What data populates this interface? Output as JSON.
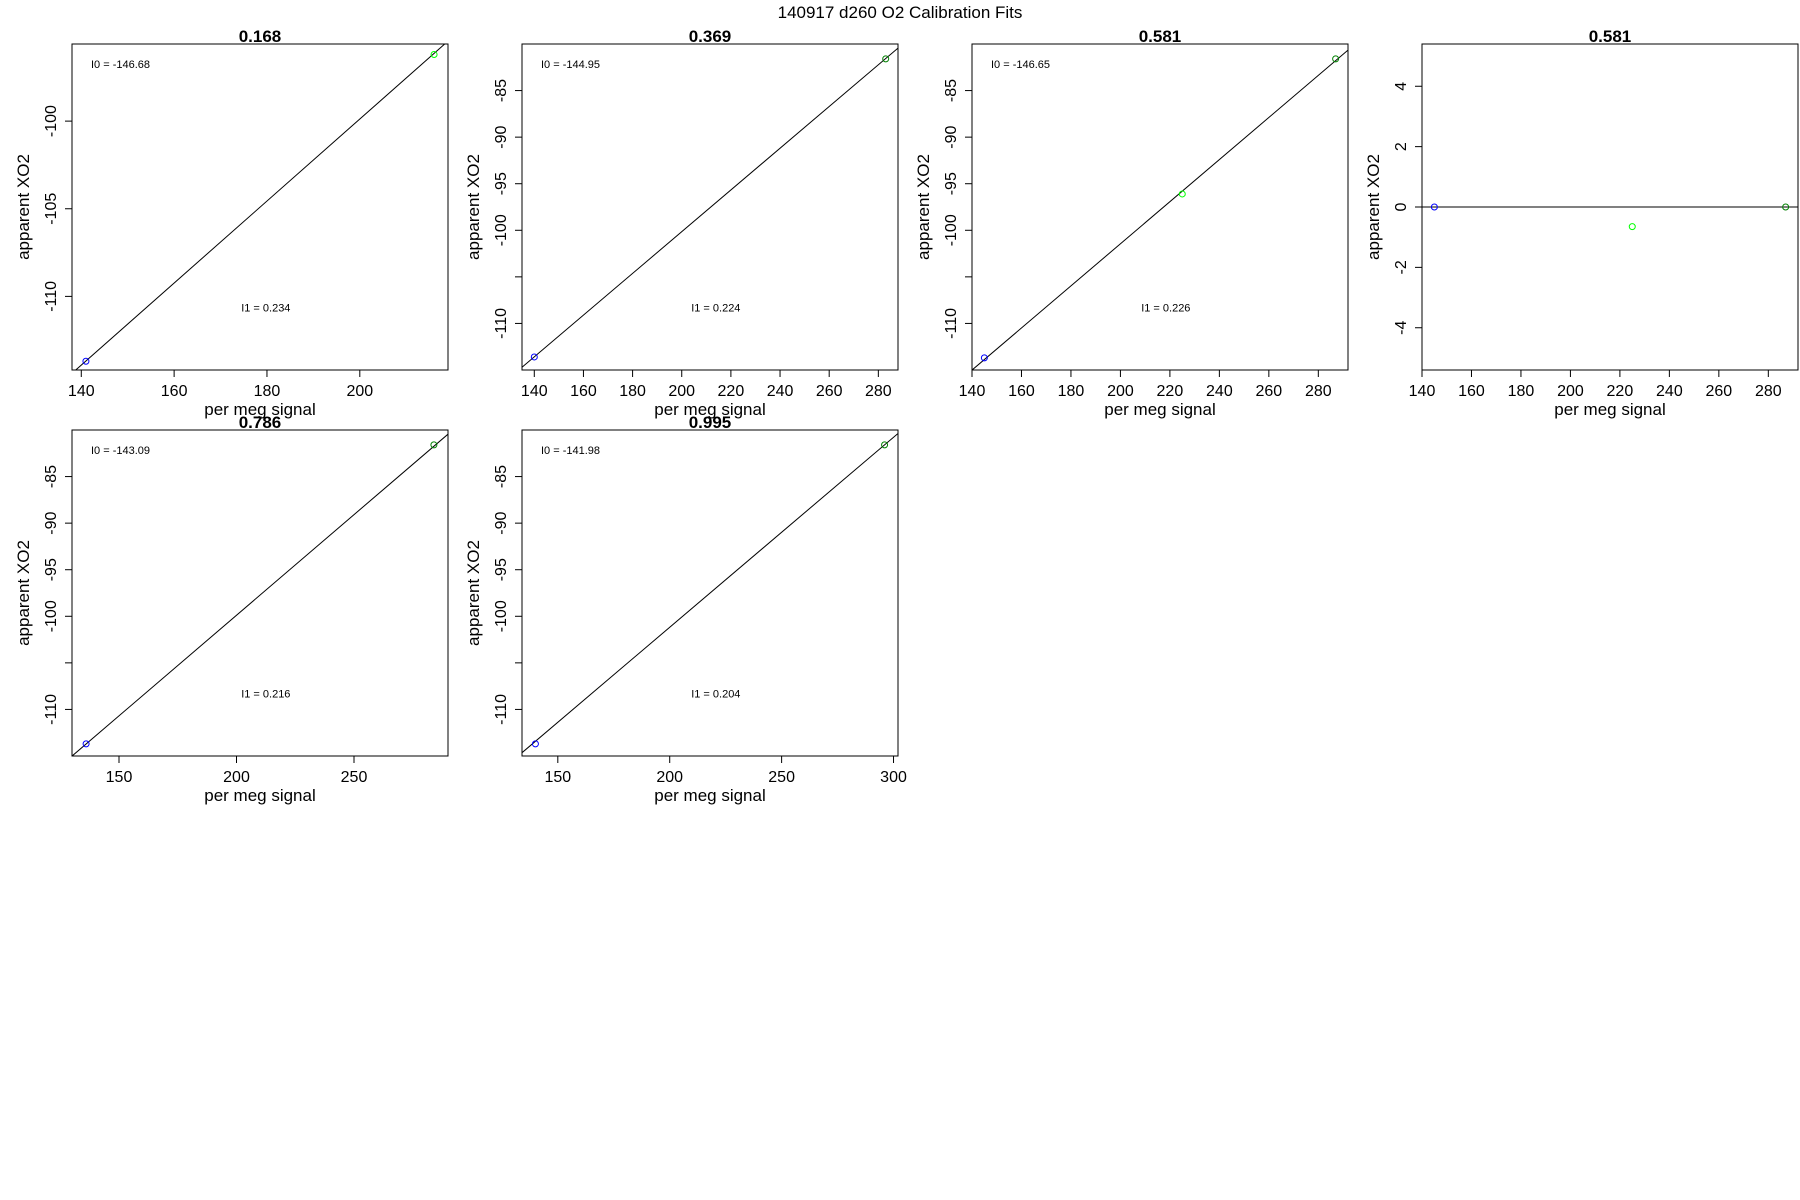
{
  "figure": {
    "title": "140917   d260   O2 Calibration Fits"
  },
  "colors": {
    "point_blue": "#0000ff",
    "point_green": "#00ff00",
    "point_dark_green": "#008000",
    "line": "#000000"
  },
  "chart_data": [
    {
      "type": "scatter",
      "title": "0.168",
      "xlabel": "per meg signal",
      "ylabel": "apparent XO2",
      "xlim": [
        138,
        219
      ],
      "ylim": [
        -114.2,
        -95.6
      ],
      "xticks": [
        140,
        160,
        180,
        200
      ],
      "yticks": [
        -100,
        -105,
        -110
      ],
      "annotations": {
        "intercept": "I0 =  -146.68",
        "slope": "I1 =  0.234"
      },
      "fit_line": {
        "intercept": -146.68,
        "slope": 0.234
      },
      "points": [
        {
          "x": 141,
          "y": -113.7,
          "color": "#0000ff"
        },
        {
          "x": 216,
          "y": -96.2,
          "color": "#00ff00"
        }
      ]
    },
    {
      "type": "scatter",
      "title": "0.369",
      "xlabel": "per meg signal",
      "ylabel": "apparent XO2",
      "xlim": [
        135,
        288
      ],
      "ylim": [
        -115,
        -80
      ],
      "xticks": [
        140,
        160,
        180,
        200,
        220,
        240,
        260,
        280
      ],
      "yticks": [
        -85,
        -90,
        -95,
        -100,
        -105,
        -110
      ],
      "ytick_labels": [
        "-85",
        "-90",
        "-95",
        "-100",
        "",
        "-110"
      ],
      "annotations": {
        "intercept": "I0 =  -144.95",
        "slope": "I1 =  0.224"
      },
      "fit_line": {
        "intercept": -144.95,
        "slope": 0.224
      },
      "points": [
        {
          "x": 140,
          "y": -113.6,
          "color": "#0000ff"
        },
        {
          "x": 283,
          "y": -81.6,
          "color": "#008000"
        }
      ]
    },
    {
      "type": "scatter",
      "title": "0.581",
      "xlabel": "per meg signal",
      "ylabel": "apparent XO2",
      "xlim": [
        140,
        292
      ],
      "ylim": [
        -115,
        -80
      ],
      "xticks": [
        140,
        160,
        180,
        200,
        220,
        240,
        260,
        280
      ],
      "yticks": [
        -85,
        -90,
        -95,
        -100,
        -105,
        -110
      ],
      "ytick_labels": [
        "-85",
        "-90",
        "-95",
        "-100",
        "",
        "-110"
      ],
      "annotations": {
        "intercept": "I0 =  -146.65",
        "slope": "I1 =  0.226"
      },
      "fit_line": {
        "intercept": -146.65,
        "slope": 0.226
      },
      "points": [
        {
          "x": 145,
          "y": -113.7,
          "color": "#0000ff"
        },
        {
          "x": 225,
          "y": -96.1,
          "color": "#00ff00"
        },
        {
          "x": 287,
          "y": -81.6,
          "color": "#008000"
        }
      ]
    },
    {
      "type": "scatter",
      "title": "0.581",
      "xlabel": "per meg signal",
      "ylabel": "apparent XO2",
      "xlim": [
        140,
        292
      ],
      "ylim": [
        -5.4,
        5.4
      ],
      "xticks": [
        140,
        160,
        180,
        200,
        220,
        240,
        260,
        280
      ],
      "yticks": [
        4,
        2,
        0,
        -2,
        -4
      ],
      "hline": 0,
      "points": [
        {
          "x": 145,
          "y": 0,
          "color": "#0000ff"
        },
        {
          "x": 225,
          "y": -0.65,
          "color": "#00ff00"
        },
        {
          "x": 287,
          "y": 0,
          "color": "#008000"
        }
      ]
    },
    {
      "type": "scatter",
      "title": "0.786",
      "xlabel": "per meg signal",
      "ylabel": "apparent XO2",
      "xlim": [
        130,
        290
      ],
      "ylim": [
        -115,
        -80
      ],
      "xticks": [
        150,
        200,
        250
      ],
      "yticks": [
        -85,
        -90,
        -95,
        -100,
        -105,
        -110
      ],
      "ytick_labels": [
        "-85",
        "-90",
        "-95",
        "-100",
        "",
        "-110"
      ],
      "annotations": {
        "intercept": "I0 =  -143.09",
        "slope": "I1 =  0.216"
      },
      "fit_line": {
        "intercept": -143.09,
        "slope": 0.216
      },
      "points": [
        {
          "x": 136,
          "y": -113.7,
          "color": "#0000ff"
        },
        {
          "x": 284,
          "y": -81.6,
          "color": "#008000"
        }
      ]
    },
    {
      "type": "scatter",
      "title": "0.995",
      "xlabel": "per meg signal",
      "ylabel": "apparent XO2",
      "xlim": [
        134,
        302
      ],
      "ylim": [
        -115,
        -80
      ],
      "xticks": [
        150,
        200,
        250,
        300
      ],
      "yticks": [
        -85,
        -90,
        -95,
        -100,
        -105,
        -110
      ],
      "ytick_labels": [
        "-85",
        "-90",
        "-95",
        "-100",
        "",
        "-110"
      ],
      "annotations": {
        "intercept": "I0 =  -141.98",
        "slope": "I1 =  0.204"
      },
      "fit_line": {
        "intercept": -141.98,
        "slope": 0.204
      },
      "points": [
        {
          "x": 140,
          "y": -113.7,
          "color": "#0000ff"
        },
        {
          "x": 296,
          "y": -81.6,
          "color": "#008000"
        }
      ]
    }
  ]
}
